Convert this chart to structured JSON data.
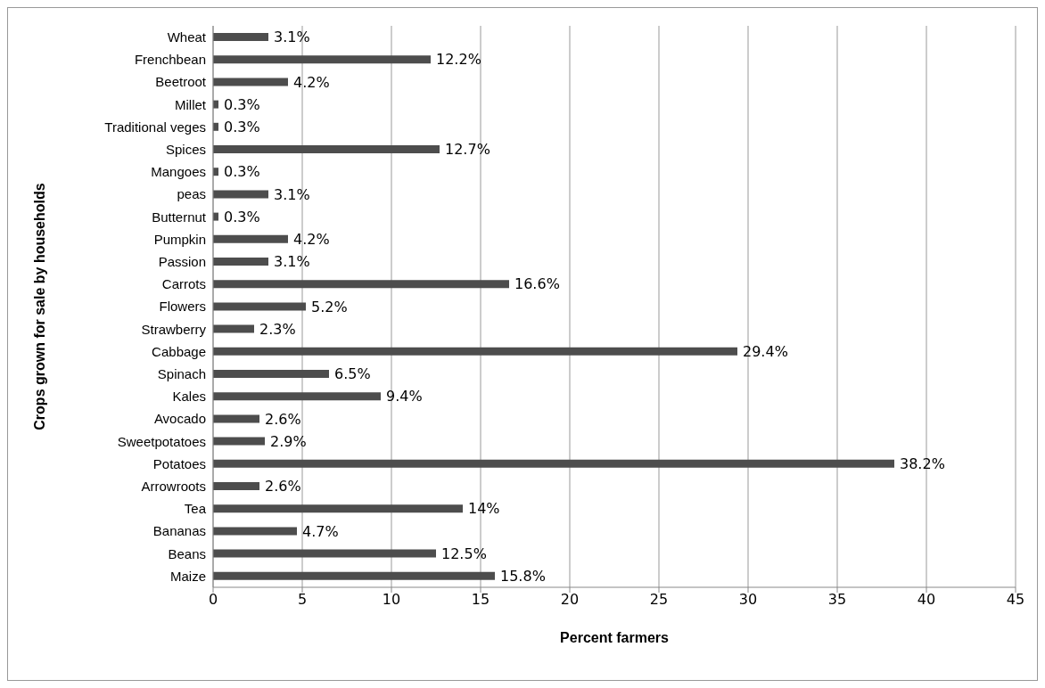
{
  "chart_data": {
    "type": "bar",
    "orientation": "horizontal",
    "xlabel": "Percent farmers",
    "ylabel": "Crops grown for sale by households",
    "categories": [
      "Wheat",
      "Frenchbean",
      "Beetroot",
      "Millet",
      "Traditional veges",
      "Spices",
      "Mangoes",
      "peas",
      "Butternut",
      "Pumpkin",
      "Passion",
      "Carrots",
      "Flowers",
      "Strawberry",
      "Cabbage",
      "Spinach",
      "Kales",
      "Avocado",
      "Sweetpotatoes",
      "Potatoes",
      "Arrowroots",
      "Tea",
      "Bananas",
      "Beans",
      "Maize"
    ],
    "values": [
      3.1,
      12.2,
      4.2,
      0.3,
      0.3,
      12.7,
      0.3,
      3.1,
      0.3,
      4.2,
      3.1,
      16.6,
      5.2,
      2.3,
      29.4,
      6.5,
      9.4,
      2.6,
      2.9,
      38.2,
      2.6,
      14,
      4.7,
      12.5,
      15.8
    ],
    "value_labels": [
      "3.1%",
      "12.2%",
      "4.2%",
      "0.3%",
      "0.3%",
      "12.7%",
      "0.3%",
      "3.1%",
      "0.3%",
      "4.2%",
      "3.1%",
      "16.6%",
      "5.2%",
      "2.3%",
      "29.4%",
      "6.5%",
      "9.4%",
      "2.6%",
      "2.9%",
      "38.2%",
      "2.6%",
      "14%",
      "4.7%",
      "12.5%",
      "15.8%"
    ],
    "color": "#4d4d4d",
    "xlim": [
      0,
      45
    ],
    "xticks": [
      0,
      5,
      10,
      15,
      20,
      25,
      30,
      35,
      40,
      45
    ],
    "grid": "x",
    "legend": false
  }
}
